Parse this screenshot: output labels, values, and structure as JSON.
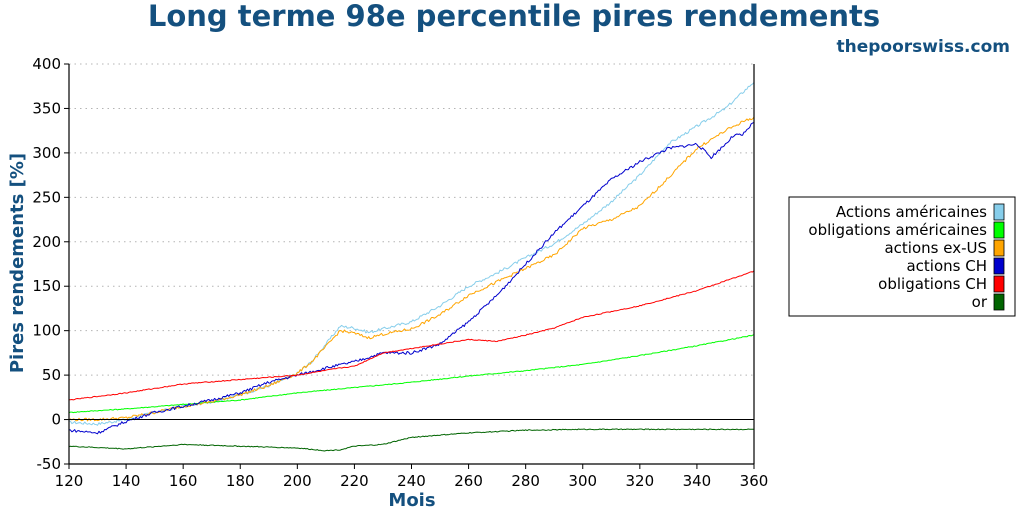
{
  "colors": {
    "title": "#14507f",
    "axis": "#000000",
    "grid": "#b4b4b4"
  },
  "chart_data": {
    "type": "line",
    "title": "Long terme 98e percentile pires rendements",
    "source": "thepoorswiss.com",
    "xlabel": "Mois",
    "ylabel": "Pires rendements [%]",
    "xlim": [
      120,
      360
    ],
    "ylim": [
      -50,
      400
    ],
    "xticks": [
      120,
      140,
      160,
      180,
      200,
      220,
      240,
      260,
      280,
      300,
      320,
      340,
      360
    ],
    "yticks": [
      -50,
      0,
      50,
      100,
      150,
      200,
      250,
      300,
      350,
      400
    ],
    "grid": "horizontal-dotted",
    "legend_position": "right",
    "series": [
      {
        "name": "Actions américaines",
        "color": "#87ceeb",
        "x": [
          120,
          130,
          140,
          150,
          160,
          170,
          180,
          190,
          200,
          205,
          210,
          215,
          220,
          225,
          230,
          240,
          250,
          260,
          270,
          280,
          290,
          300,
          310,
          320,
          330,
          340,
          350,
          356,
          360
        ],
        "y": [
          -3,
          -5,
          0,
          8,
          15,
          20,
          28,
          38,
          52,
          65,
          85,
          105,
          103,
          98,
          102,
          110,
          128,
          150,
          165,
          182,
          198,
          220,
          245,
          275,
          310,
          330,
          350,
          368,
          380
        ]
      },
      {
        "name": "obligations américaines",
        "color": "#00ff00",
        "x": [
          120,
          140,
          160,
          180,
          200,
          220,
          240,
          260,
          280,
          300,
          320,
          340,
          360
        ],
        "y": [
          8,
          12,
          17,
          22,
          30,
          36,
          42,
          49,
          55,
          62,
          72,
          83,
          95
        ]
      },
      {
        "name": "actions ex-US",
        "color": "#ffa500",
        "x": [
          120,
          130,
          140,
          150,
          160,
          170,
          180,
          190,
          200,
          205,
          210,
          215,
          220,
          225,
          230,
          240,
          250,
          260,
          270,
          280,
          290,
          300,
          310,
          320,
          330,
          340,
          350,
          356,
          360
        ],
        "y": [
          0,
          0,
          2,
          8,
          15,
          20,
          28,
          38,
          52,
          65,
          82,
          100,
          97,
          92,
          96,
          102,
          118,
          140,
          155,
          170,
          185,
          215,
          225,
          240,
          272,
          305,
          325,
          335,
          340
        ]
      },
      {
        "name": "actions CH",
        "color": "#0000cd",
        "x": [
          120,
          130,
          140,
          150,
          160,
          170,
          180,
          190,
          200,
          210,
          220,
          230,
          240,
          250,
          260,
          270,
          280,
          290,
          300,
          310,
          320,
          330,
          340,
          345,
          350,
          353,
          356,
          360
        ],
        "y": [
          -12,
          -15,
          -2,
          8,
          15,
          22,
          30,
          42,
          50,
          58,
          65,
          75,
          75,
          85,
          110,
          140,
          175,
          210,
          240,
          270,
          290,
          305,
          310,
          295,
          310,
          320,
          320,
          335
        ]
      },
      {
        "name": "obligations CH",
        "color": "#ff0000",
        "x": [
          120,
          140,
          160,
          180,
          200,
          215,
          220,
          230,
          240,
          250,
          260,
          270,
          280,
          290,
          300,
          320,
          340,
          360
        ],
        "y": [
          22,
          30,
          40,
          45,
          50,
          58,
          60,
          75,
          80,
          85,
          90,
          88,
          95,
          103,
          115,
          128,
          145,
          167
        ]
      },
      {
        "name": "or",
        "color": "#006400",
        "x": [
          120,
          140,
          160,
          180,
          200,
          210,
          215,
          220,
          230,
          240,
          260,
          280,
          300,
          320,
          340,
          360
        ],
        "y": [
          -30,
          -33,
          -28,
          -30,
          -32,
          -35,
          -34,
          -30,
          -28,
          -20,
          -15,
          -12,
          -11,
          -11,
          -11,
          -11
        ]
      }
    ]
  }
}
